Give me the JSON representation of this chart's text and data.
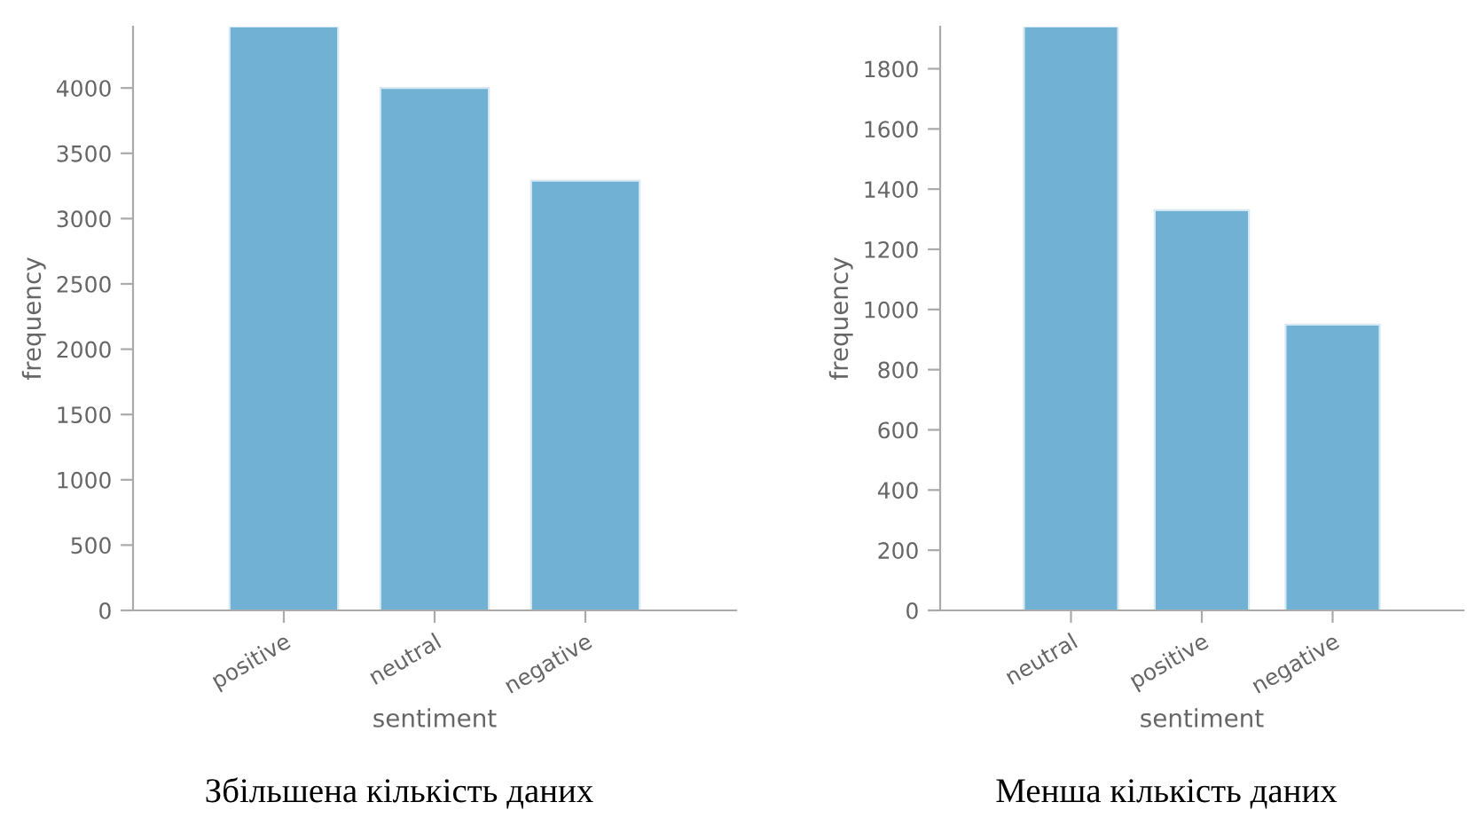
{
  "chart_data": [
    {
      "type": "bar",
      "title": "Збільшена кількість даних",
      "xlabel": "sentiment",
      "ylabel": "frequency",
      "categories": [
        "positive",
        "neutral",
        "negative"
      ],
      "values": [
        4470,
        4000,
        3290
      ],
      "color": "#71b1d3",
      "ylim": [
        0,
        4470
      ],
      "yticks": [
        0,
        500,
        1000,
        1500,
        2000,
        2500,
        3000,
        3500,
        4000
      ],
      "grid": false,
      "legend": false
    },
    {
      "type": "bar",
      "title": "Менша кількість даних",
      "xlabel": "sentiment",
      "ylabel": "frequency",
      "categories": [
        "neutral",
        "positive",
        "negative"
      ],
      "values": [
        1940,
        1330,
        950
      ],
      "color": "#71b1d3",
      "ylim": [
        0,
        1940
      ],
      "yticks": [
        0,
        200,
        400,
        600,
        800,
        1000,
        1200,
        1400,
        1600,
        1800
      ],
      "grid": false,
      "legend": false
    }
  ]
}
